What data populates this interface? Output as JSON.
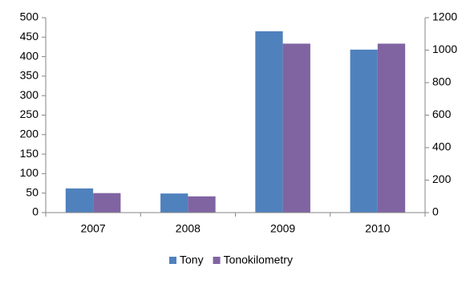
{
  "chart_data": {
    "type": "bar",
    "categories": [
      "2007",
      "2008",
      "2009",
      "2010"
    ],
    "series": [
      {
        "name": "Tony",
        "color": "#4f81bd",
        "values": [
          62,
          49,
          465,
          418
        ]
      },
      {
        "name": "Tonokilometry",
        "color": "#8064a2",
        "values": [
          120,
          100,
          1040,
          1040
        ],
        "axis": "y2"
      }
    ],
    "ylim": [
      0,
      500
    ],
    "yticks": [
      0,
      50,
      100,
      150,
      200,
      250,
      300,
      350,
      400,
      450,
      500
    ],
    "y2lim": [
      0,
      1200
    ],
    "y2ticks": [
      0,
      200,
      400,
      600,
      800,
      1000,
      1200
    ],
    "grid": false,
    "legend": "bottom"
  }
}
